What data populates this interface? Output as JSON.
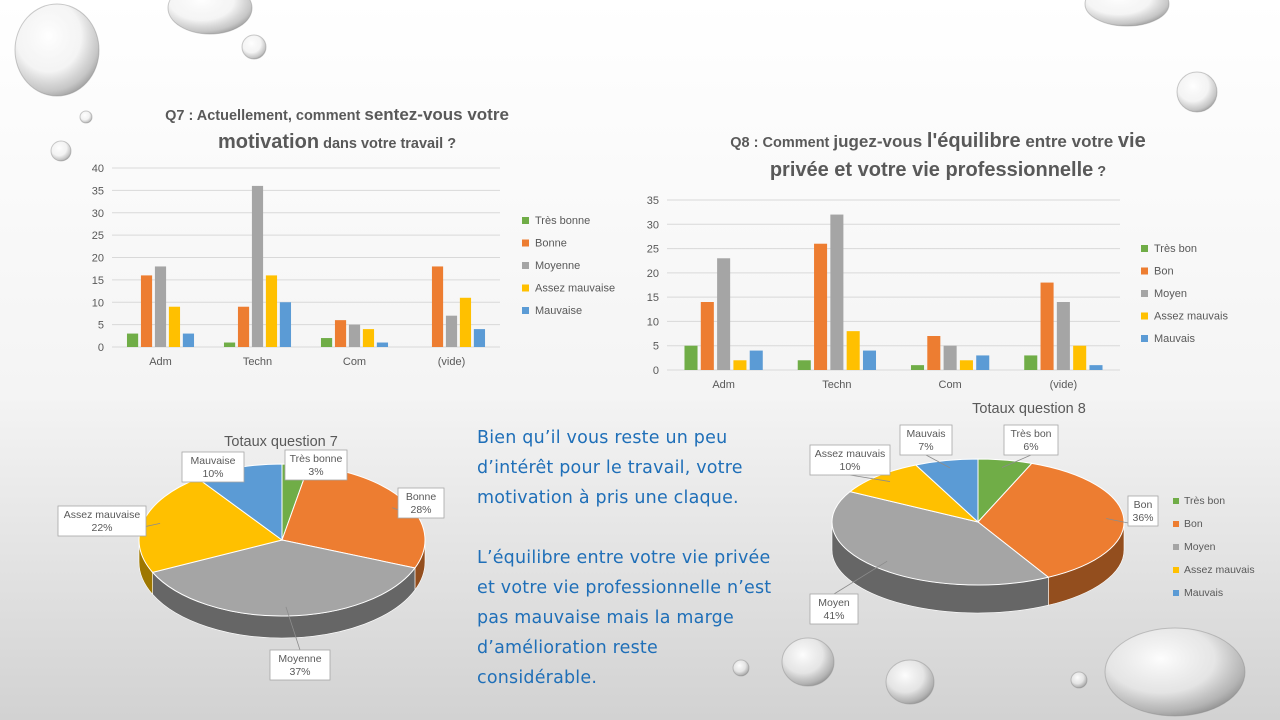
{
  "slide": {
    "comment_1": "Bien qu’il vous reste un peu d’intérêt pour le travail, votre motivation à pris une claque.",
    "comment_2": "L’équilibre entre votre vie privée et votre vie professionnelle  n’est pas mauvaise mais la marge d’amélioration reste considérable."
  },
  "colors": {
    "green": "#70ad47",
    "orange": "#ed7d31",
    "gray": "#a5a5a5",
    "yellow": "#ffc000",
    "blue": "#5b9bd5"
  },
  "chart_data": [
    {
      "id": "q7_bar",
      "type": "bar",
      "title_parts": [
        {
          "text": "Q7 : Actuellement, comment ",
          "size": "normal"
        },
        {
          "text": "sentez-vous votre",
          "size": "large"
        },
        {
          "text": "motivation",
          "size": "xlarge"
        },
        {
          "text": " dans votre travail ?",
          "size": "normal"
        }
      ],
      "categories": [
        "Adm",
        "Techn",
        "Com",
        "(vide)"
      ],
      "series": [
        {
          "name": "Très bonne",
          "color": "#70ad47",
          "values": [
            3,
            1,
            2,
            0
          ]
        },
        {
          "name": "Bonne",
          "color": "#ed7d31",
          "values": [
            16,
            9,
            6,
            18
          ]
        },
        {
          "name": "Moyenne",
          "color": "#a5a5a5",
          "values": [
            18,
            36,
            5,
            7
          ]
        },
        {
          "name": "Assez mauvaise",
          "color": "#ffc000",
          "values": [
            9,
            16,
            4,
            11
          ]
        },
        {
          "name": "Mauvaise",
          "color": "#5b9bd5",
          "values": [
            3,
            10,
            1,
            4
          ]
        }
      ],
      "ylim": [
        0,
        40
      ],
      "yticks": [
        0,
        5,
        10,
        15,
        20,
        25,
        30,
        35,
        40
      ],
      "grid": true,
      "legend": "right"
    },
    {
      "id": "q8_bar",
      "type": "bar",
      "title_parts": [
        {
          "text": "Q8 : Comment ",
          "size": "normal"
        },
        {
          "text": "jugez-vous ",
          "size": "large"
        },
        {
          "text": "l'équilibre",
          "size": "xlarge"
        },
        {
          "text": " entre votre ",
          "size": "large"
        },
        {
          "text": "vie",
          "size": "xlarge"
        },
        {
          "text": "privée et votre vie professionnelle",
          "size": "xlarge"
        },
        {
          "text": " ?",
          "size": "normal"
        }
      ],
      "categories": [
        "Adm",
        "Techn",
        "Com",
        "(vide)"
      ],
      "series": [
        {
          "name": "Très bon",
          "color": "#70ad47",
          "values": [
            5,
            2,
            1,
            3
          ]
        },
        {
          "name": "Bon",
          "color": "#ed7d31",
          "values": [
            14,
            26,
            7,
            18
          ]
        },
        {
          "name": "Moyen",
          "color": "#a5a5a5",
          "values": [
            23,
            32,
            5,
            14
          ]
        },
        {
          "name": "Assez mauvais",
          "color": "#ffc000",
          "values": [
            2,
            8,
            2,
            5
          ]
        },
        {
          "name": "Mauvais",
          "color": "#5b9bd5",
          "values": [
            4,
            4,
            3,
            1
          ]
        }
      ],
      "ylim": [
        0,
        35
      ],
      "yticks": [
        0,
        5,
        10,
        15,
        20,
        25,
        30,
        35
      ],
      "grid": true,
      "legend": "right"
    },
    {
      "id": "q7_pie",
      "type": "pie",
      "title": "Totaux question 7",
      "slices": [
        {
          "label": "Très bonne",
          "pct": "3%",
          "value": 3,
          "color": "#70ad47"
        },
        {
          "label": "Bonne",
          "pct": "28%",
          "value": 28,
          "color": "#ed7d31"
        },
        {
          "label": "Moyenne",
          "pct": "37%",
          "value": 37,
          "color": "#a5a5a5"
        },
        {
          "label": "Assez mauvaise",
          "pct": "22%",
          "value": 22,
          "color": "#ffc000"
        },
        {
          "label": "Mauvaise",
          "pct": "10%",
          "value": 10,
          "color": "#5b9bd5"
        }
      ],
      "legend": "none"
    },
    {
      "id": "q8_pie",
      "type": "pie",
      "title": "Totaux question 8",
      "slices": [
        {
          "label": "Très bon",
          "pct": "6%",
          "value": 6,
          "color": "#70ad47"
        },
        {
          "label": "Bon",
          "pct": "36%",
          "value": 36,
          "color": "#ed7d31"
        },
        {
          "label": "Moyen",
          "pct": "41%",
          "value": 41,
          "color": "#a5a5a5"
        },
        {
          "label": "Assez mauvais",
          "pct": "10%",
          "value": 10,
          "color": "#ffc000"
        },
        {
          "label": "Mauvais",
          "pct": "7%",
          "value": 7,
          "color": "#5b9bd5"
        }
      ],
      "legend": "right"
    }
  ]
}
